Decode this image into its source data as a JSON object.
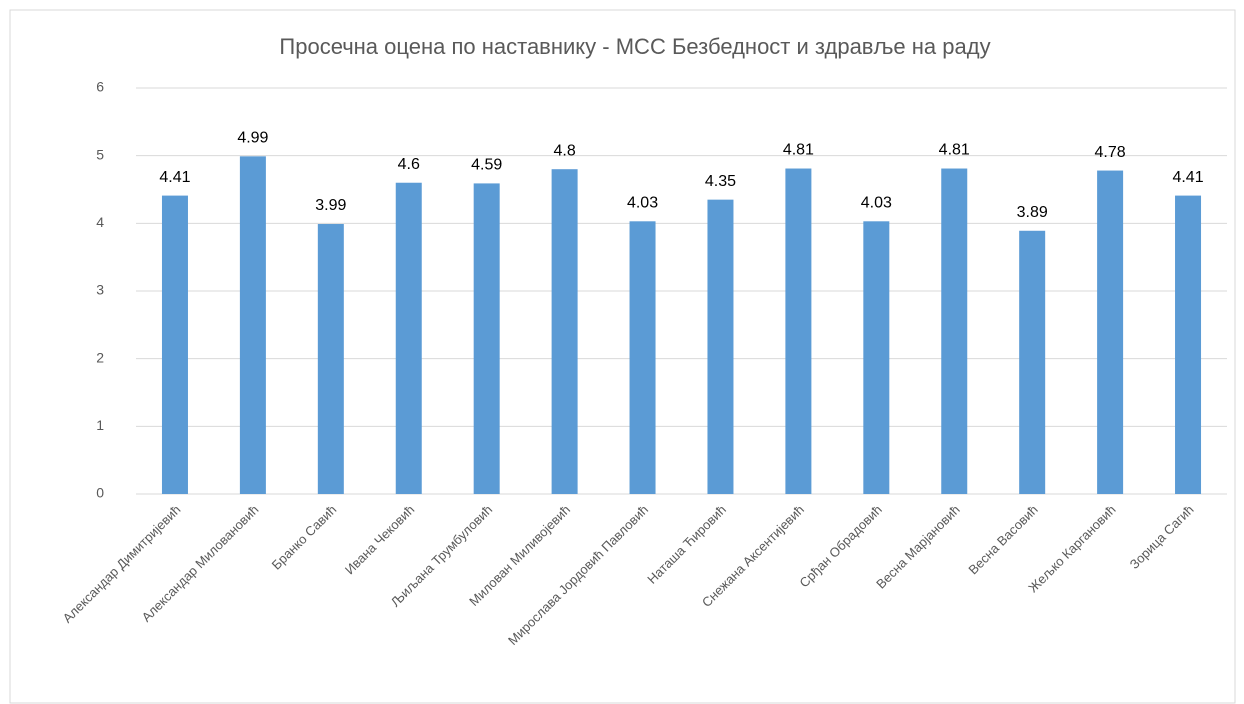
{
  "chart_data": {
    "type": "bar",
    "title": "Просечна оцена по наставнику - МСС Безбедност и здравље на раду",
    "categories": [
      "Александар Димитријевић",
      "Александар Миловановић",
      "Бранко Савић",
      "Ивана Чековић",
      "Љиљана Трумбуловић",
      "Милован Миливојевић",
      "Мирослава Јордовић Павловић",
      "Наташа Ћировић",
      "Снежана Аксентијевић",
      "Срђан Обрадовић",
      "Весна Марјановић",
      "Весна Васовић",
      "Жељко Каргановић",
      "Зорица Сагић"
    ],
    "values": [
      4.41,
      4.99,
      3.99,
      4.6,
      4.59,
      4.8,
      4.03,
      4.35,
      4.81,
      4.03,
      4.81,
      3.89,
      4.78,
      4.41
    ],
    "color": "#5b9bd5",
    "ylim": [
      0,
      6
    ],
    "yticks": [
      0,
      1,
      2,
      3,
      4,
      5,
      6
    ],
    "grid": true
  }
}
